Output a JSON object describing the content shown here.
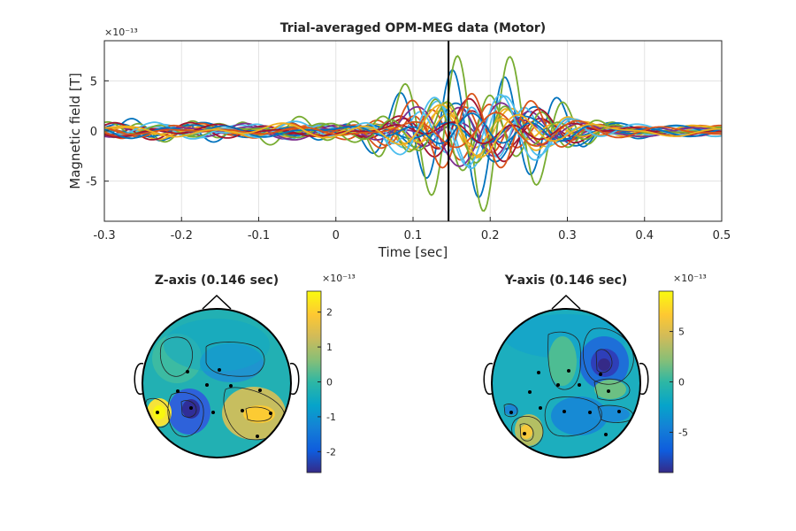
{
  "chart_data": [
    {
      "type": "line",
      "title": "Trial-averaged OPM-MEG data (Motor)",
      "xlabel": "Time [sec]",
      "ylabel": "Magnetic field [T]",
      "y_exponent": "×10⁻¹³",
      "xlim": [
        -0.3,
        0.5
      ],
      "ylim": [
        -9,
        9
      ],
      "xticks": [
        "-0.3",
        "-0.2",
        "-0.1",
        "0",
        "0.1",
        "0.2",
        "0.3",
        "0.4",
        "0.5"
      ],
      "yticks": [
        "5",
        "0",
        "-5"
      ],
      "grid": true,
      "marker_time": 0.146,
      "colors": [
        "#0072BD",
        "#D95319",
        "#EDB120",
        "#7E2F8E",
        "#77AC30",
        "#4DBEEE",
        "#A2142F"
      ],
      "n_series": 24
    },
    {
      "type": "heatmap",
      "title": "Z-axis (0.146 sec)",
      "colorbar_exponent": "×10⁻¹³",
      "colorbar_ticks": [
        "2",
        "1",
        "0",
        "-1",
        "-2"
      ],
      "clim": [
        -2.6,
        2.6
      ]
    },
    {
      "type": "heatmap",
      "title": "Y-axis (0.146 sec)",
      "colorbar_exponent": "×10⁻¹³",
      "colorbar_ticks": [
        "5",
        "0",
        "-5"
      ],
      "clim": [
        -9,
        9
      ]
    }
  ]
}
